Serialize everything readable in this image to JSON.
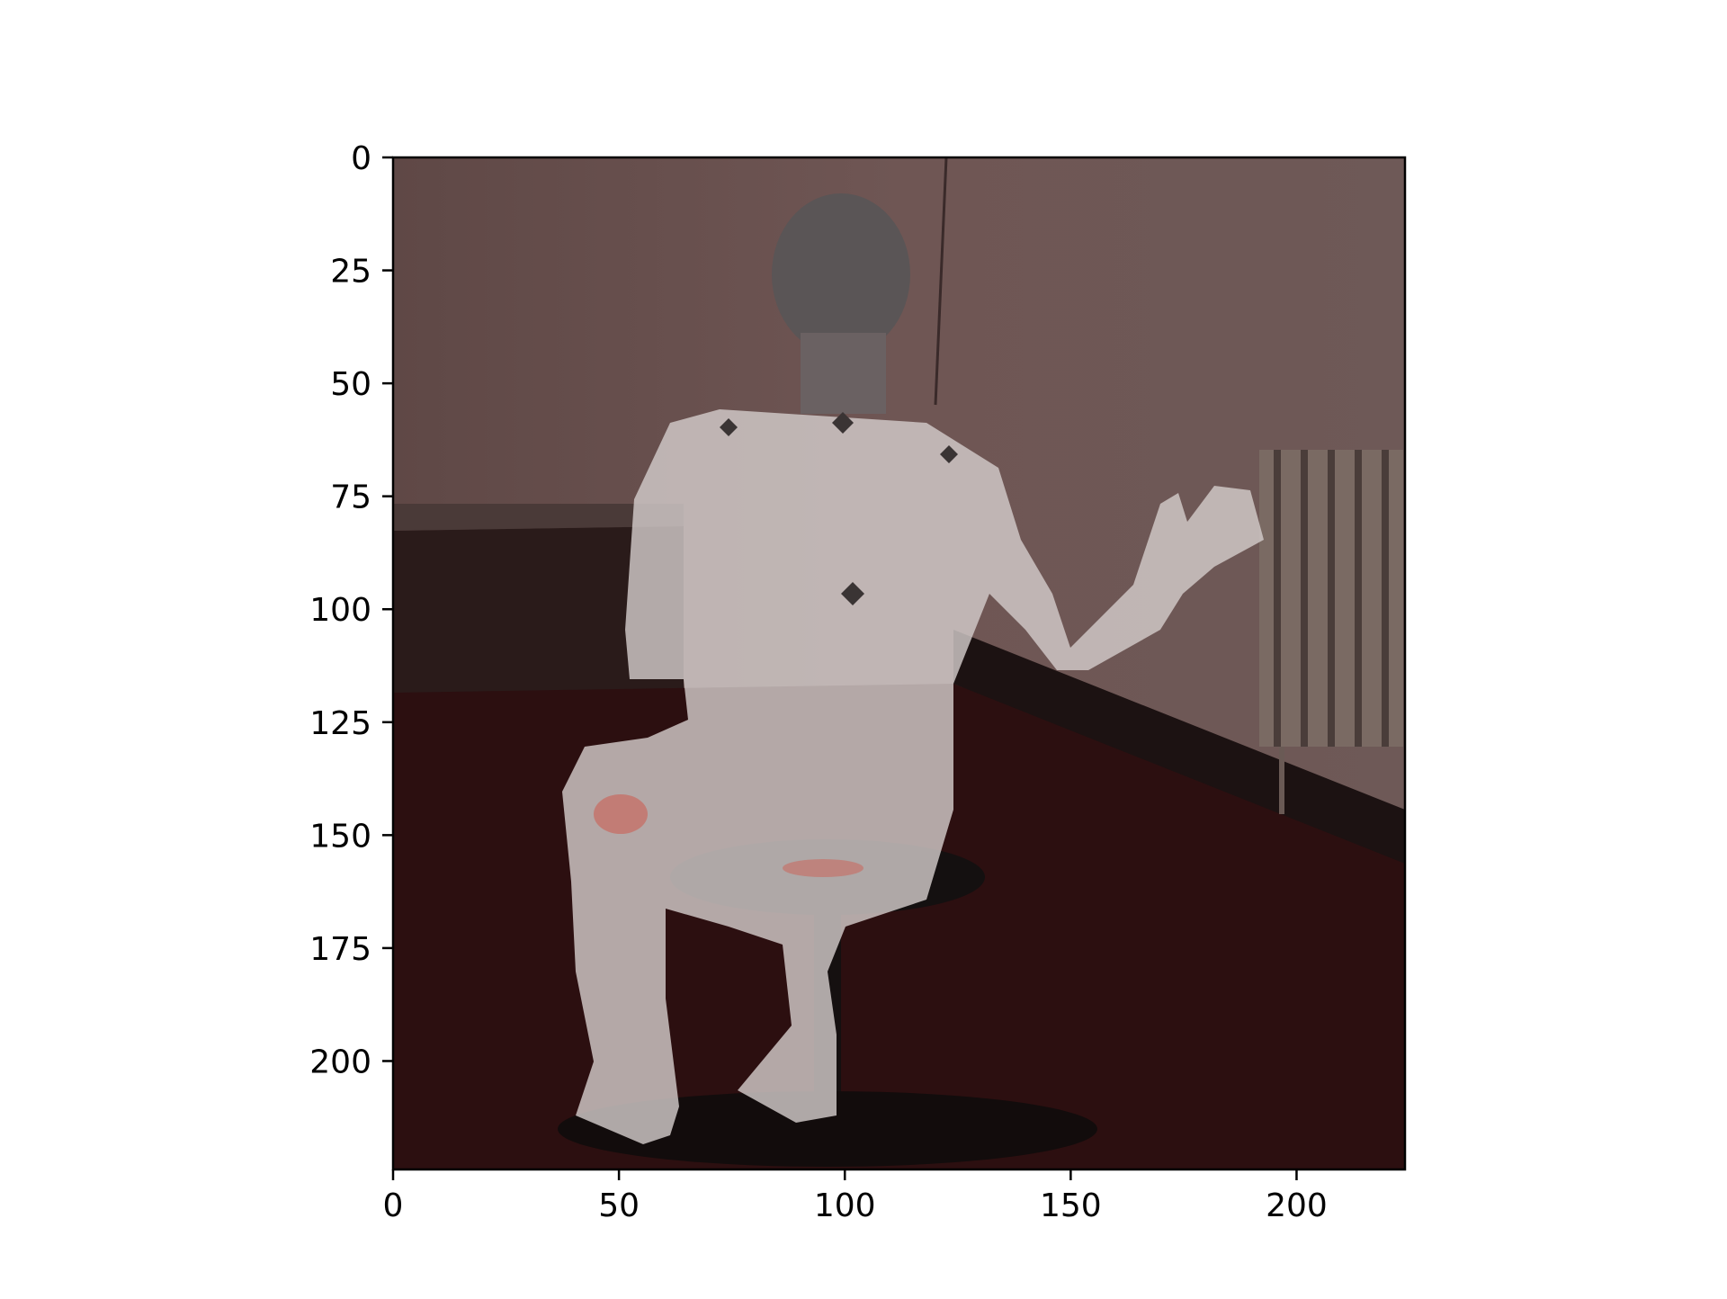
{
  "chart_data": {
    "type": "image",
    "title": "",
    "xlabel": "",
    "ylabel": "",
    "xlim": [
      0,
      224
    ],
    "ylim": [
      224,
      0
    ],
    "y_inverted": true,
    "xticks": [
      0,
      50,
      100,
      150,
      200
    ],
    "yticks": [
      0,
      25,
      50,
      75,
      100,
      125,
      150,
      175,
      200
    ],
    "grid": false,
    "legend": "none",
    "image_content": "photo of a person seated on a stool seen from behind, with a translucent white body-mesh overlay",
    "colors": {
      "wall": "#6a5150",
      "floor": "#2c0f10",
      "baseboard": "#2a1b1a",
      "overlay": "#d2cbc9",
      "head": "#5a5556",
      "radiator": "#7a6a63",
      "stool": "#141010",
      "axis": "#000000"
    }
  }
}
